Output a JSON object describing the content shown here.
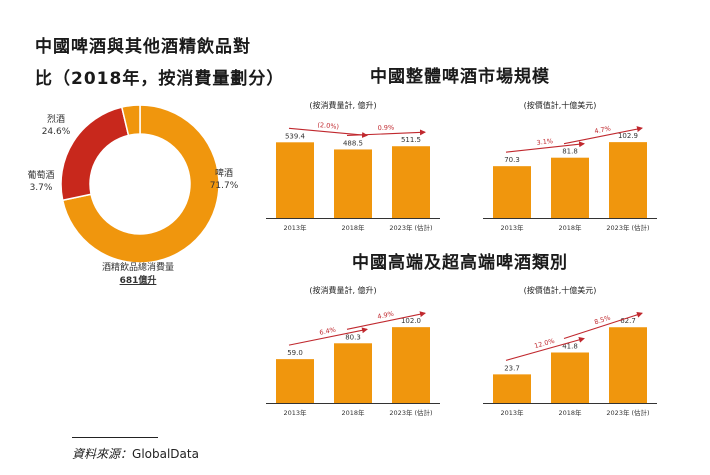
{
  "colors": {
    "orange": "#F0960D",
    "red": "#C8281C",
    "arrow_red": "#C0282E",
    "axis": "#333333",
    "text": "#222222"
  },
  "page": {
    "title_line1": "中國啤酒與其他酒精飲品對",
    "title_line2": "比（2018年，按消費量劃分）",
    "section_market_title": "中國整體啤酒市場規模",
    "section_premium_title": "中國高端及超高端啤酒類別",
    "source_label": "資料來源：",
    "source_value": "GlobalData"
  },
  "chart_data": [
    {
      "id": "donut",
      "type": "pie",
      "title": "",
      "slices": [
        {
          "label": "啤酒",
          "value": 71.7,
          "value_label": "71.7%",
          "color": "#F0960D"
        },
        {
          "label": "烈酒",
          "value": 24.6,
          "value_label": "24.6%",
          "color": "#C8281C"
        },
        {
          "label": "葡萄酒",
          "value": 3.7,
          "value_label": "3.7%",
          "color": "#F0960D"
        }
      ],
      "center_caption": "酒精飲品總消費量",
      "center_value": "681億升"
    },
    {
      "id": "market_volume",
      "type": "bar",
      "title": "(按消費量計, 億升)",
      "categories": [
        "2013年",
        "2018年",
        "2023年 (估計)"
      ],
      "values": [
        539.4,
        488.5,
        511.5
      ],
      "value_labels": [
        "539.4",
        "488.5",
        "511.5"
      ],
      "cagr_labels": [
        "(2.0%)",
        "0.9%"
      ],
      "ylim": [
        0,
        620
      ]
    },
    {
      "id": "market_value",
      "type": "bar",
      "title": "(按價值計,十億美元)",
      "categories": [
        "2013年",
        "2018年",
        "2023年 (估計)"
      ],
      "values": [
        70.3,
        81.8,
        102.9
      ],
      "value_labels": [
        "70.3",
        "81.8",
        "102.9"
      ],
      "cagr_labels": [
        "3.1%",
        "4.7%"
      ],
      "ylim": [
        0,
        118
      ]
    },
    {
      "id": "premium_volume",
      "type": "bar",
      "title": "(按消費量計, 億升)",
      "categories": [
        "2013年",
        "2018年",
        "2023年 (估計)"
      ],
      "values": [
        59.0,
        80.3,
        102.0
      ],
      "value_labels": [
        "59.0",
        "80.3",
        "102.0"
      ],
      "cagr_labels": [
        "6.4%",
        "4.9%"
      ],
      "ylim": [
        0,
        117
      ]
    },
    {
      "id": "premium_value",
      "type": "bar",
      "title": "(按價值計,十億美元)",
      "categories": [
        "2013年",
        "2018年",
        "2023年 (估計)"
      ],
      "values": [
        23.7,
        41.8,
        62.7
      ],
      "value_labels": [
        "23.7",
        "41.8",
        "62.7"
      ],
      "cagr_labels": [
        "12.0%",
        "8.5%"
      ],
      "ylim": [
        0,
        72
      ]
    }
  ]
}
